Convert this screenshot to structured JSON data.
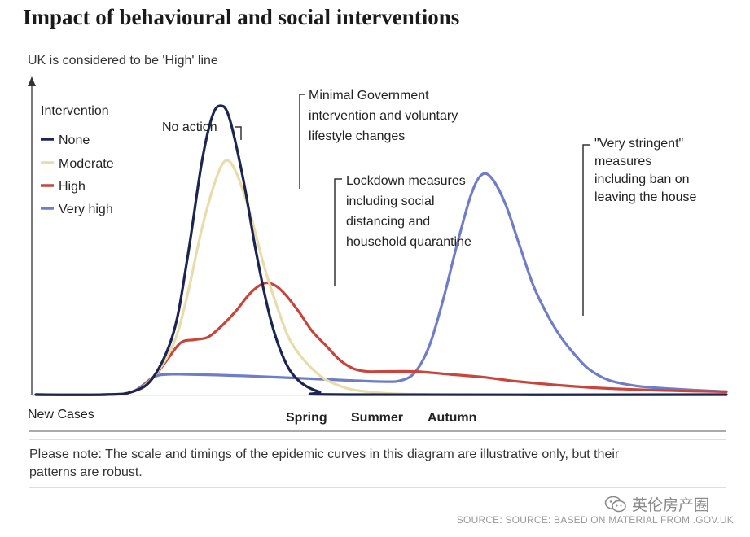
{
  "chart_data": {
    "type": "line",
    "title": "Impact of behavioural and social interventions",
    "ylabel": "UK is considered to be 'High' line",
    "xlabel": "New Cases",
    "x_ticks": [
      "Spring",
      "Summer",
      "Autumn"
    ],
    "legend": {
      "title": "Intervention",
      "placement": "top-left"
    },
    "y_axis_values_shown": false,
    "series": [
      {
        "name": "None",
        "color": "#1b2550",
        "points": [
          [
            0,
            0
          ],
          [
            10,
            0
          ],
          [
            14,
            1
          ],
          [
            17,
            6
          ],
          [
            20,
            22
          ],
          [
            22,
            48
          ],
          [
            24,
            80
          ],
          [
            25.5,
            96
          ],
          [
            26.7,
            100
          ],
          [
            28,
            96
          ],
          [
            30,
            75
          ],
          [
            32,
            48
          ],
          [
            34,
            26
          ],
          [
            36,
            12
          ],
          [
            38,
            5
          ],
          [
            41,
            1
          ],
          [
            45,
            0
          ],
          [
            100,
            0
          ]
        ]
      },
      {
        "name": "Moderate",
        "color": "#e8dcaa",
        "points": [
          [
            0,
            0
          ],
          [
            10,
            0
          ],
          [
            14,
            1
          ],
          [
            17,
            6
          ],
          [
            20,
            18
          ],
          [
            22,
            35
          ],
          [
            24,
            57
          ],
          [
            26,
            74
          ],
          [
            27.5,
            81
          ],
          [
            29,
            77
          ],
          [
            31,
            63
          ],
          [
            33,
            45
          ],
          [
            35,
            30
          ],
          [
            37,
            18
          ],
          [
            40,
            9
          ],
          [
            43,
            4
          ],
          [
            48,
            1
          ],
          [
            60,
            0
          ],
          [
            100,
            0
          ]
        ]
      },
      {
        "name": "High",
        "color": "#c8453b",
        "points": [
          [
            0,
            0
          ],
          [
            10,
            0
          ],
          [
            14,
            1
          ],
          [
            17,
            6
          ],
          [
            19,
            12
          ],
          [
            21,
            18
          ],
          [
            23,
            19
          ],
          [
            25,
            20
          ],
          [
            27,
            24
          ],
          [
            29,
            29
          ],
          [
            31,
            35
          ],
          [
            33,
            38.5
          ],
          [
            34.5,
            38
          ],
          [
            36,
            35
          ],
          [
            38,
            29
          ],
          [
            40,
            22
          ],
          [
            42,
            17
          ],
          [
            44,
            12
          ],
          [
            46,
            9
          ],
          [
            48,
            8
          ],
          [
            50,
            8
          ],
          [
            55,
            8
          ],
          [
            60,
            7
          ],
          [
            65,
            6
          ],
          [
            70,
            4.5
          ],
          [
            80,
            2.5
          ],
          [
            90,
            1.5
          ],
          [
            100,
            1
          ]
        ]
      },
      {
        "name": "Very high",
        "color": "#6f7cc8",
        "points": [
          [
            0,
            0
          ],
          [
            10,
            0
          ],
          [
            14,
            1
          ],
          [
            17,
            6
          ],
          [
            19,
            7
          ],
          [
            22,
            7
          ],
          [
            30,
            6.5
          ],
          [
            40,
            5.5
          ],
          [
            50,
            4.5
          ],
          [
            53,
            5
          ],
          [
            55,
            8
          ],
          [
            57,
            17
          ],
          [
            59,
            33
          ],
          [
            61,
            52
          ],
          [
            63,
            69
          ],
          [
            64.5,
            76
          ],
          [
            66,
            75
          ],
          [
            68,
            66
          ],
          [
            70,
            52
          ],
          [
            72,
            38
          ],
          [
            74,
            28
          ],
          [
            76,
            20
          ],
          [
            78,
            14
          ],
          [
            80,
            9
          ],
          [
            83,
            5
          ],
          [
            87,
            3
          ],
          [
            92,
            2
          ],
          [
            100,
            1
          ]
        ]
      }
    ],
    "annotations": [
      {
        "text": [
          "No action"
        ],
        "series": "None"
      },
      {
        "text": [
          "Minimal Government",
          "intervention and voluntary",
          "lifestyle changes"
        ],
        "series": "Moderate"
      },
      {
        "text": [
          "Lockdown measures",
          "including social",
          "distancing and",
          "household quarantine"
        ],
        "series": "High"
      },
      {
        "text": [
          "\"Very stringent\"",
          "measures",
          "including ban on",
          "leaving the house"
        ],
        "series": "Very high"
      }
    ]
  },
  "note": "Please note: The scale and timings of the epidemic curves in this diagram are illustrative only, but their patterns are robust.",
  "watermark": "英伦房产圈",
  "source": "SOURCE: SOURCE: BASED ON MATERIAL FROM .GOV.UK"
}
